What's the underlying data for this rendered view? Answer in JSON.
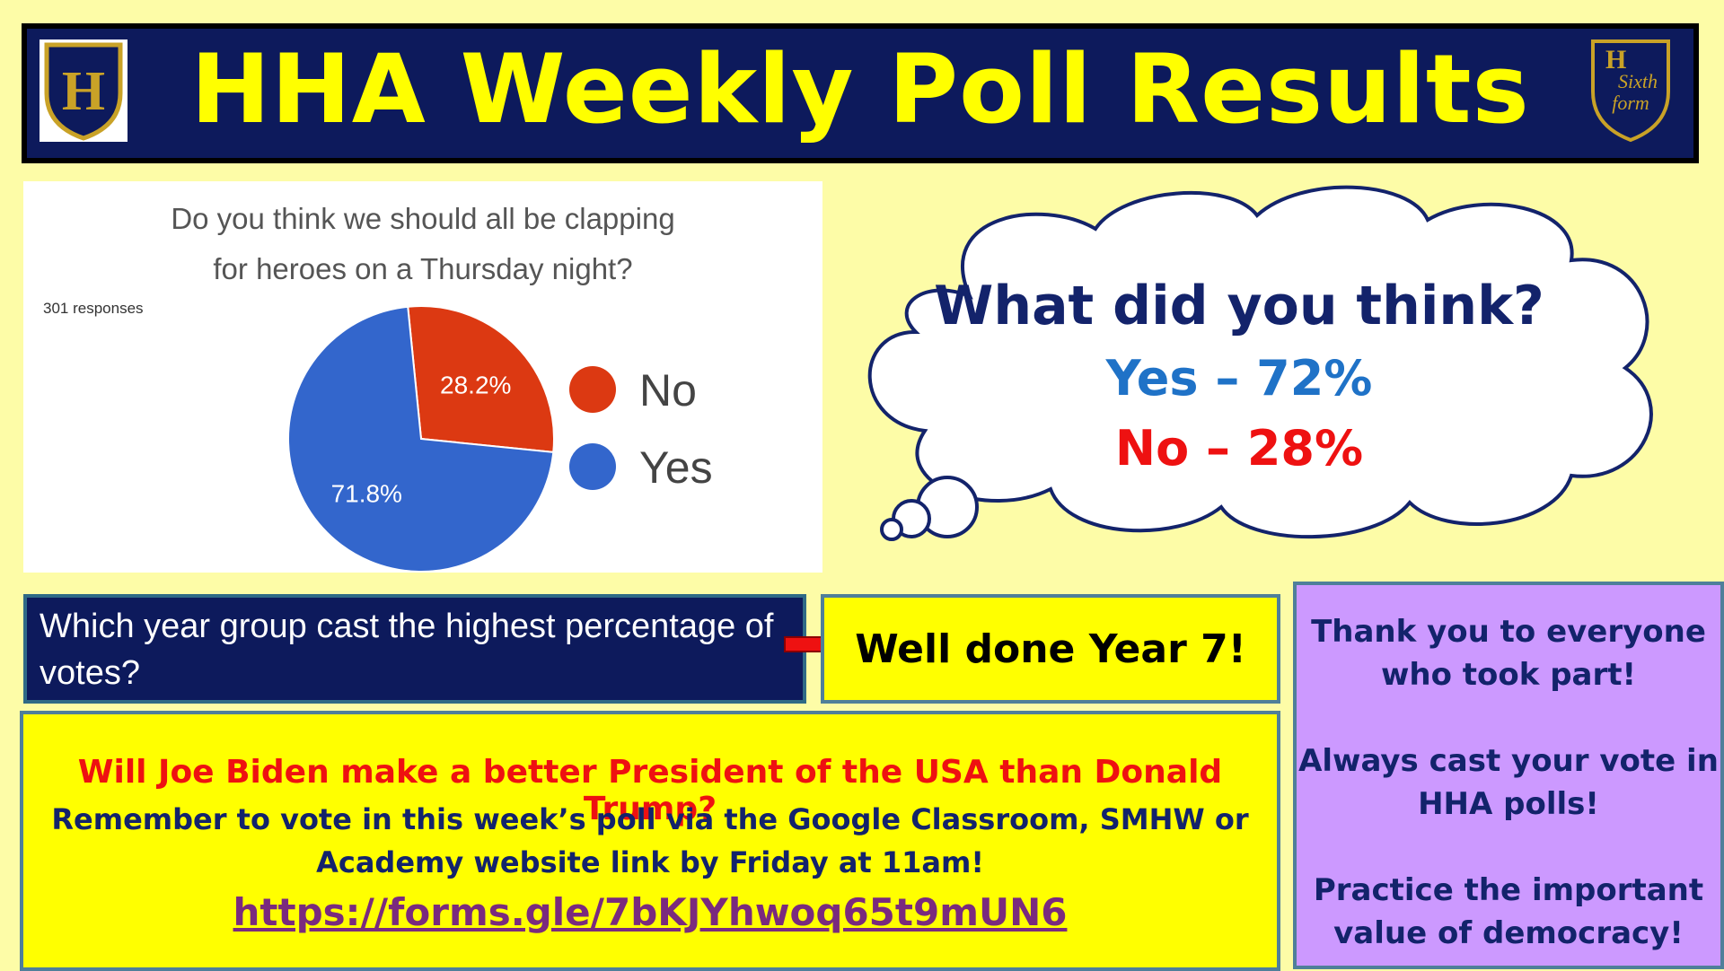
{
  "header": {
    "title": "HHA Weekly Poll Results",
    "left_crest_letter": "H",
    "right_crest_text": [
      "H",
      "Sixth",
      "form"
    ]
  },
  "poll": {
    "question_line1": "Do you think we should all be clapping",
    "question_line2": "for heroes on a Thursday night?",
    "responses": "301 responses"
  },
  "chart_data": {
    "type": "pie",
    "title": "Do you think we should all be clapping for heroes on a Thursday night?",
    "categories": [
      "No",
      "Yes"
    ],
    "values": [
      28.2,
      71.8
    ],
    "labels": [
      "28.2%",
      "71.8%"
    ],
    "colors": [
      "#dc3912",
      "#3366cc"
    ],
    "legend_position": "right"
  },
  "cloud": {
    "question": "What did you think?",
    "yes": "Yes – 72%",
    "no": "No – 28%"
  },
  "year_group": {
    "question": "Which year group cast the highest percentage of votes?",
    "answer": "Well done Year 7!"
  },
  "next_poll": {
    "question": "Will Joe Biden make a better President of the USA than Donald Trump?",
    "reminder_line1": "Remember to vote in this week’s poll via the Google Classroom, SMHW or",
    "reminder_line2": "Academy website link by Friday at 11am!",
    "link": "https://forms.gle/7bKJYhwoq65t9mUN6"
  },
  "thanks": {
    "p1": "Thank you to everyone who took part!",
    "p2": "Always cast your vote in HHA polls!",
    "p3": "Practice the important value of democracy!"
  }
}
